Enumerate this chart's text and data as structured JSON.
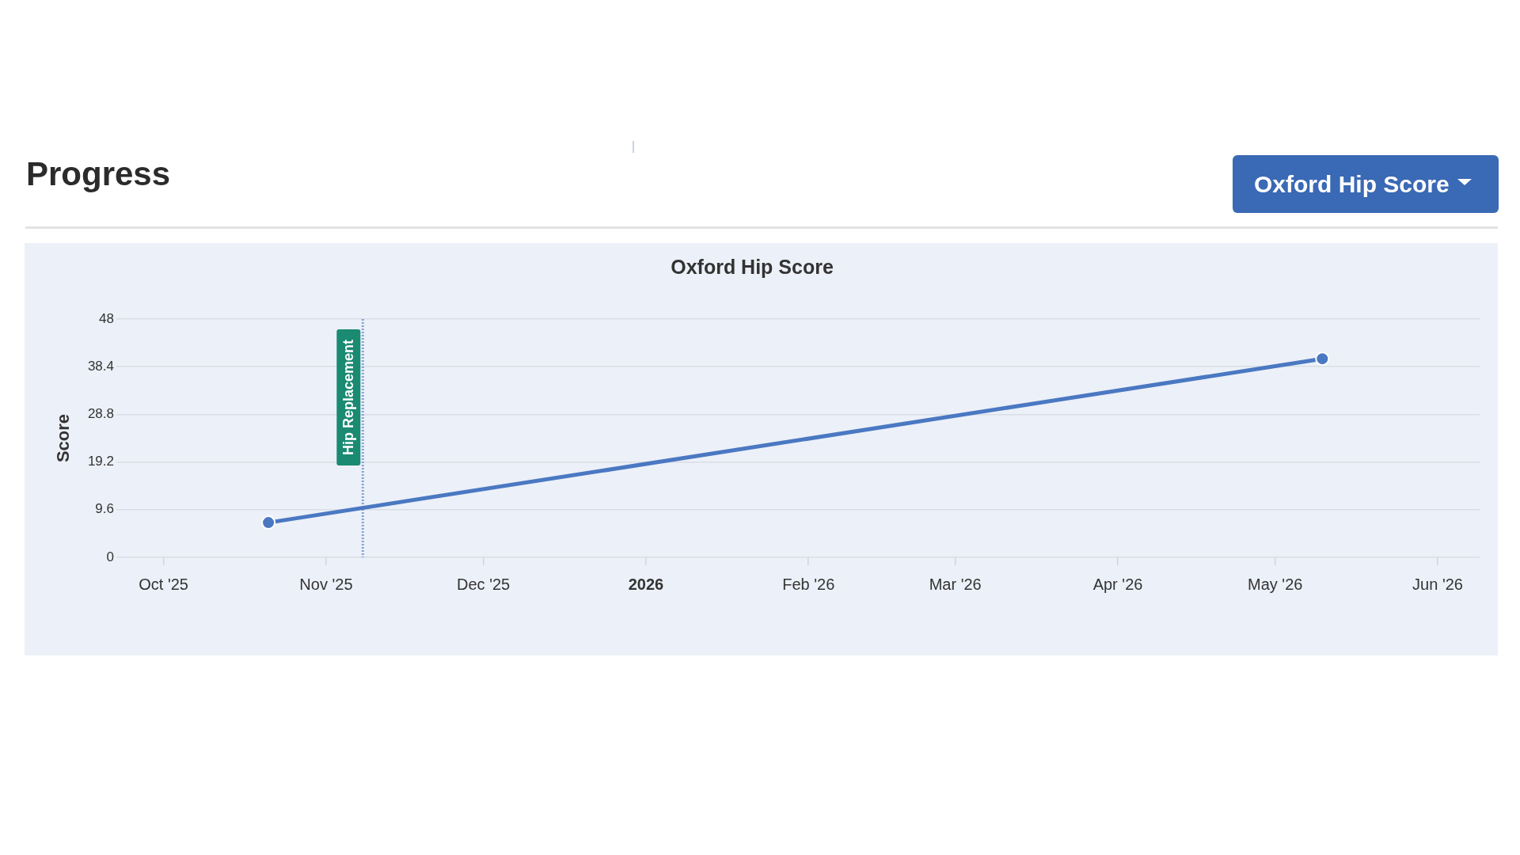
{
  "chart_data": {
    "type": "line",
    "title": "Oxford Hip Score",
    "ylabel": "Score",
    "annotations": [
      "Progress",
      "Oxford Hip Score"
    ],
    "x": [
      "2025-10-21",
      "2026-05-10"
    ],
    "series": [
      {
        "color": "#4a78c2",
        "values": [
          7,
          40
        ]
      }
    ],
    "xlim": [
      "2025-09-22",
      "2026-06-09"
    ],
    "xticks": [
      {
        "value": "2025-10-01",
        "label": "Oct '25"
      },
      {
        "value": "2025-11-01",
        "label": "Nov '25"
      },
      {
        "value": "2025-12-01",
        "label": "Dec '25"
      },
      {
        "value": "2026-01-01",
        "label": "2026"
      },
      {
        "value": "2026-02-01",
        "label": "Feb '26"
      },
      {
        "value": "2026-03-01",
        "label": "Mar '26"
      },
      {
        "value": "2026-04-01",
        "label": "Apr '26"
      },
      {
        "value": "2026-05-01",
        "label": "May '26"
      },
      {
        "value": "2026-06-01",
        "label": "Jun '26"
      }
    ],
    "ylim": [
      0,
      48
    ],
    "yticks": [
      0,
      9.6,
      19.2,
      28.8,
      38.4,
      48
    ],
    "ref_lines": [
      {
        "axis": "x",
        "value": "2025-11-08",
        "label": "Hip Replacement",
        "color": "#86a3d8",
        "line_style": "dotted"
      }
    ],
    "grid": "y",
    "marker": "circle"
  }
}
